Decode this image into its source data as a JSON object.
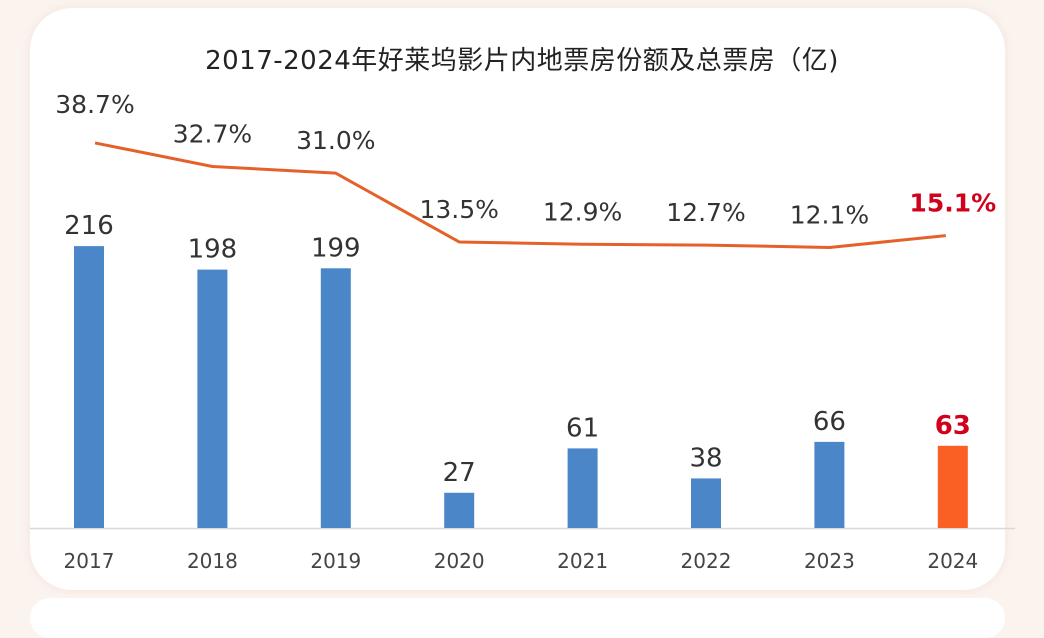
{
  "chart_data": {
    "type": "bar+line",
    "title": "2017-2024年好莱坞影片内地票房份额及总票房（亿)",
    "categories": [
      "2017",
      "2018",
      "2019",
      "2020",
      "2021",
      "2022",
      "2023",
      "2024"
    ],
    "series": [
      {
        "type": "bar",
        "values": [
          216,
          198,
          199,
          27,
          61,
          38,
          66,
          63
        ],
        "labels": [
          "216",
          "198",
          "199",
          "27",
          "61",
          "38",
          "66",
          "63"
        ]
      },
      {
        "type": "line",
        "values": [
          38.7,
          32.7,
          31.0,
          13.5,
          12.9,
          12.7,
          12.1,
          15.1
        ],
        "labels": [
          "38.7%",
          "32.7%",
          "31.0%",
          "13.5%",
          "12.9%",
          "12.7%",
          "12.1%",
          "15.1%"
        ]
      }
    ],
    "highlight_category": "2024",
    "colors": {
      "bar": "#4a86c8",
      "bar_highlight": "#fa5f23",
      "line": "#e4622a",
      "label": "#333333",
      "highlight_label": "#d0021b",
      "axis": "#d9d9d9"
    },
    "grid": false,
    "legend": "none"
  }
}
